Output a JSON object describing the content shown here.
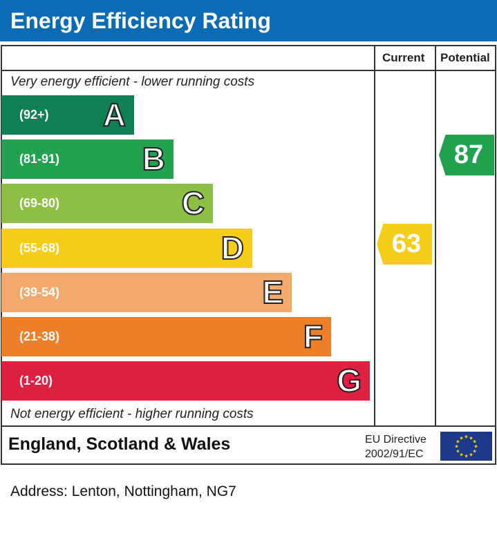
{
  "title": "Energy Efficiency Rating",
  "headers": {
    "current": "Current",
    "potential": "Potential"
  },
  "top_note": "Very energy efficient - lower running costs",
  "bottom_note": "Not energy efficient - higher running costs",
  "chart_data": {
    "type": "bar",
    "categories": [
      "A",
      "B",
      "C",
      "D",
      "E",
      "F",
      "G"
    ],
    "bands": [
      {
        "letter": "A",
        "range": "(92+)",
        "color": "#0f7f55"
      },
      {
        "letter": "B",
        "range": "(81-91)",
        "color": "#22a14f"
      },
      {
        "letter": "C",
        "range": "(69-80)",
        "color": "#8dbe45"
      },
      {
        "letter": "D",
        "range": "(55-68)",
        "color": "#f5cc18"
      },
      {
        "letter": "E",
        "range": "(39-54)",
        "color": "#f2a96d"
      },
      {
        "letter": "F",
        "range": "(21-38)",
        "color": "#ec7f27"
      },
      {
        "letter": "G",
        "range": "(1-20)",
        "color": "#e02040"
      }
    ],
    "current": {
      "value": "63",
      "band": "D",
      "color": "#f5cc18"
    },
    "potential": {
      "value": "87",
      "band": "B",
      "color": "#22a14f"
    }
  },
  "footer": {
    "region": "England, Scotland & Wales",
    "directive_line1": "EU Directive",
    "directive_line2": "2002/91/EC"
  },
  "address": "Address: Lenton, Nottingham, NG7"
}
